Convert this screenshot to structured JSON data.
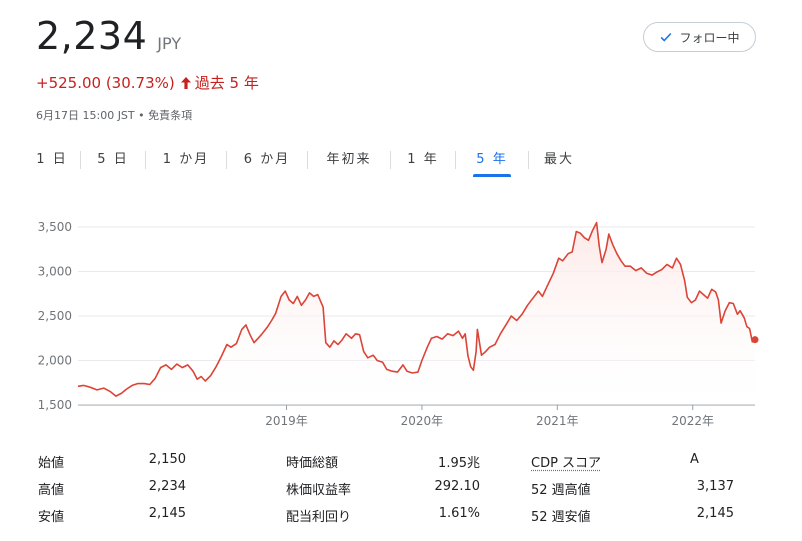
{
  "quote": {
    "price": "2,234",
    "currency": "JPY",
    "change": "+525.00 (30.73%)",
    "change_period": "過去 5 年",
    "timestamp": "6月17日 15:00 JST • 免責条項"
  },
  "follow_button": {
    "label": "フォロー中",
    "icon": "check-icon"
  },
  "tabs": [
    {
      "label": "1 日",
      "active": false
    },
    {
      "label": "5 日",
      "active": false
    },
    {
      "label": "1 か月",
      "active": false
    },
    {
      "label": "6 か月",
      "active": false
    },
    {
      "label": "年初来",
      "active": false
    },
    {
      "label": "1 年",
      "active": false
    },
    {
      "label": "5 年",
      "active": true
    },
    {
      "label": "最大",
      "active": false
    }
  ],
  "colors": {
    "line": "#db4437",
    "accent": "#1a73e8",
    "negative": "#c5221f",
    "grid": "#e8eaed"
  },
  "chart_data": {
    "type": "area",
    "y_ticks": [
      "3,500",
      "3,000",
      "2,500",
      "2,000",
      "1,500"
    ],
    "x_ticks": [
      "2019年",
      "2020年",
      "2021年",
      "2022年"
    ],
    "ylim": [
      1500,
      3600
    ],
    "xlim": [
      2017.46,
      2022.46
    ],
    "grid": true,
    "series": [
      {
        "values": [
          [
            2017.46,
            1710
          ],
          [
            2017.5,
            1720
          ],
          [
            2017.55,
            1700
          ],
          [
            2017.6,
            1670
          ],
          [
            2017.65,
            1690
          ],
          [
            2017.7,
            1650
          ],
          [
            2017.74,
            1600
          ],
          [
            2017.78,
            1630
          ],
          [
            2017.82,
            1680
          ],
          [
            2017.86,
            1720
          ],
          [
            2017.9,
            1740
          ],
          [
            2017.95,
            1740
          ],
          [
            2017.99,
            1730
          ],
          [
            2018.03,
            1800
          ],
          [
            2018.07,
            1920
          ],
          [
            2018.11,
            1950
          ],
          [
            2018.15,
            1900
          ],
          [
            2018.19,
            1960
          ],
          [
            2018.23,
            1920
          ],
          [
            2018.27,
            1950
          ],
          [
            2018.31,
            1880
          ],
          [
            2018.34,
            1790
          ],
          [
            2018.37,
            1820
          ],
          [
            2018.4,
            1770
          ],
          [
            2018.44,
            1830
          ],
          [
            2018.48,
            1930
          ],
          [
            2018.52,
            2050
          ],
          [
            2018.56,
            2180
          ],
          [
            2018.59,
            2150
          ],
          [
            2018.63,
            2190
          ],
          [
            2018.67,
            2350
          ],
          [
            2018.7,
            2400
          ],
          [
            2018.73,
            2290
          ],
          [
            2018.76,
            2200
          ],
          [
            2018.79,
            2250
          ],
          [
            2018.82,
            2300
          ],
          [
            2018.86,
            2380
          ],
          [
            2018.89,
            2450
          ],
          [
            2018.92,
            2530
          ],
          [
            2018.96,
            2720
          ],
          [
            2018.99,
            2780
          ],
          [
            2019.02,
            2680
          ],
          [
            2019.05,
            2640
          ],
          [
            2019.08,
            2720
          ],
          [
            2019.11,
            2620
          ],
          [
            2019.14,
            2680
          ],
          [
            2019.17,
            2760
          ],
          [
            2019.2,
            2720
          ],
          [
            2019.23,
            2740
          ],
          [
            2019.27,
            2600
          ],
          [
            2019.29,
            2200
          ],
          [
            2019.32,
            2150
          ],
          [
            2019.35,
            2220
          ],
          [
            2019.38,
            2180
          ],
          [
            2019.41,
            2230
          ],
          [
            2019.44,
            2300
          ],
          [
            2019.48,
            2250
          ],
          [
            2019.51,
            2300
          ],
          [
            2019.54,
            2290
          ],
          [
            2019.57,
            2100
          ],
          [
            2019.6,
            2030
          ],
          [
            2019.64,
            2060
          ],
          [
            2019.67,
            2000
          ],
          [
            2019.71,
            1980
          ],
          [
            2019.74,
            1900
          ],
          [
            2019.78,
            1880
          ],
          [
            2019.82,
            1870
          ],
          [
            2019.86,
            1950
          ],
          [
            2019.89,
            1880
          ],
          [
            2019.93,
            1860
          ],
          [
            2019.97,
            1870
          ],
          [
            2020.0,
            2000
          ],
          [
            2020.04,
            2150
          ],
          [
            2020.07,
            2250
          ],
          [
            2020.11,
            2270
          ],
          [
            2020.15,
            2240
          ],
          [
            2020.19,
            2300
          ],
          [
            2020.23,
            2280
          ],
          [
            2020.27,
            2330
          ],
          [
            2020.3,
            2250
          ],
          [
            2020.32,
            2300
          ],
          [
            2020.34,
            2050
          ],
          [
            2020.36,
            1930
          ],
          [
            2020.38,
            1890
          ],
          [
            2020.4,
            2100
          ],
          [
            2020.41,
            2350
          ],
          [
            2020.44,
            2060
          ],
          [
            2020.47,
            2100
          ],
          [
            2020.5,
            2150
          ],
          [
            2020.54,
            2180
          ],
          [
            2020.58,
            2300
          ],
          [
            2020.62,
            2400
          ],
          [
            2020.66,
            2500
          ],
          [
            2020.7,
            2450
          ],
          [
            2020.74,
            2520
          ],
          [
            2020.78,
            2620
          ],
          [
            2020.82,
            2700
          ],
          [
            2020.86,
            2780
          ],
          [
            2020.89,
            2720
          ],
          [
            2020.93,
            2850
          ],
          [
            2020.97,
            2980
          ],
          [
            2021.01,
            3150
          ],
          [
            2021.04,
            3120
          ],
          [
            2021.08,
            3200
          ],
          [
            2021.11,
            3220
          ],
          [
            2021.14,
            3450
          ],
          [
            2021.17,
            3430
          ],
          [
            2021.2,
            3380
          ],
          [
            2021.23,
            3350
          ],
          [
            2021.26,
            3460
          ],
          [
            2021.29,
            3550
          ],
          [
            2021.31,
            3280
          ],
          [
            2021.33,
            3100
          ],
          [
            2021.36,
            3250
          ],
          [
            2021.38,
            3420
          ],
          [
            2021.41,
            3300
          ],
          [
            2021.44,
            3200
          ],
          [
            2021.47,
            3120
          ],
          [
            2021.5,
            3060
          ],
          [
            2021.54,
            3060
          ],
          [
            2021.58,
            3010
          ],
          [
            2021.62,
            3040
          ],
          [
            2021.66,
            2980
          ],
          [
            2021.7,
            2960
          ],
          [
            2021.73,
            2990
          ],
          [
            2021.77,
            3020
          ],
          [
            2021.81,
            3080
          ],
          [
            2021.85,
            3040
          ],
          [
            2021.88,
            3150
          ],
          [
            2021.91,
            3080
          ],
          [
            2021.94,
            2900
          ],
          [
            2021.96,
            2710
          ],
          [
            2021.99,
            2650
          ],
          [
            2022.02,
            2680
          ],
          [
            2022.05,
            2780
          ],
          [
            2022.08,
            2740
          ],
          [
            2022.11,
            2700
          ],
          [
            2022.14,
            2800
          ],
          [
            2022.17,
            2770
          ],
          [
            2022.19,
            2680
          ],
          [
            2022.21,
            2420
          ],
          [
            2022.24,
            2560
          ],
          [
            2022.27,
            2650
          ],
          [
            2022.3,
            2640
          ],
          [
            2022.33,
            2520
          ],
          [
            2022.35,
            2560
          ],
          [
            2022.38,
            2480
          ],
          [
            2022.4,
            2380
          ],
          [
            2022.42,
            2360
          ],
          [
            2022.44,
            2210
          ],
          [
            2022.46,
            2234
          ]
        ]
      }
    ]
  },
  "stats": {
    "rows": [
      [
        {
          "label": "始値",
          "value": "2,150"
        },
        {
          "label": "時価総額",
          "value": "1.95兆"
        },
        {
          "label": "CDP スコア",
          "value": "A"
        }
      ],
      [
        {
          "label": "高値",
          "value": "2,234"
        },
        {
          "label": "株価収益率",
          "value": "292.10"
        },
        {
          "label": "52 週高値",
          "value": "3,137"
        }
      ],
      [
        {
          "label": "安値",
          "value": "2,145"
        },
        {
          "label": "配当利回り",
          "value": "1.61%"
        },
        {
          "label": "52 週安値",
          "value": "2,145"
        }
      ]
    ]
  }
}
